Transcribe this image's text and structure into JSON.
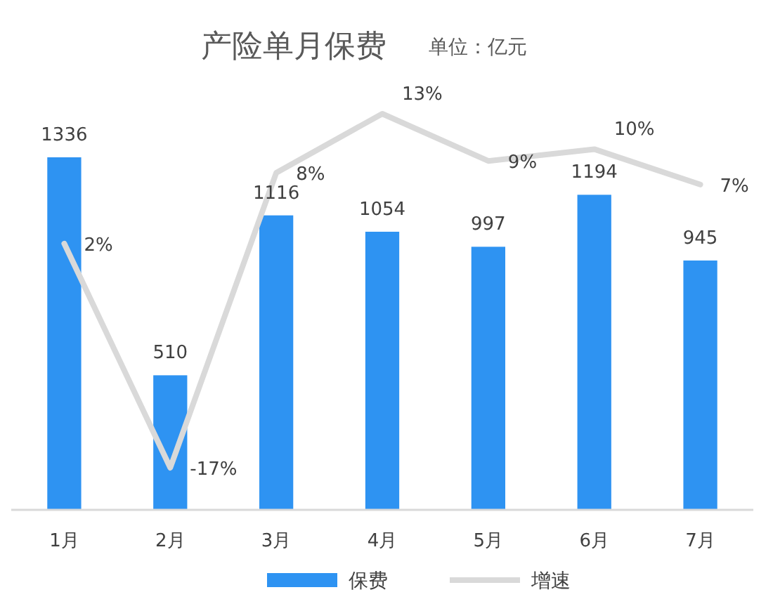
{
  "chart_data": {
    "type": "bar",
    "title": "产险单月保费",
    "subtitle": "单位：亿元",
    "categories": [
      "1月",
      "2月",
      "3月",
      "4月",
      "5月",
      "6月",
      "7月"
    ],
    "series": [
      {
        "name": "保费",
        "color": "#2e93f2",
        "values": [
          1336,
          510,
          1116,
          1054,
          997,
          1194,
          945
        ],
        "value_labels": [
          "1336",
          "510",
          "1116",
          "1054",
          "997",
          "1194",
          "945"
        ]
      },
      {
        "name": "增速",
        "type": "line",
        "axis": "y2",
        "color": "#d9d9d9",
        "values": [
          2,
          -17,
          8,
          13,
          9,
          10,
          7
        ],
        "value_labels": [
          "2%",
          "-17%",
          "8%",
          "13%",
          "9%",
          "10%",
          "7%"
        ]
      }
    ],
    "tick_labels": "x",
    "legend": "bottom",
    "marker": "none"
  }
}
